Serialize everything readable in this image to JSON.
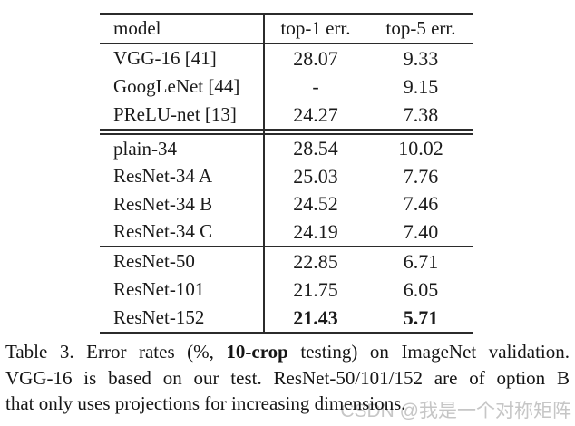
{
  "table": {
    "header": {
      "model": "model",
      "top1": "top-1 err.",
      "top5": "top-5 err."
    },
    "groups": [
      {
        "rows": [
          {
            "model": "VGG-16 [41]",
            "top1": "28.07",
            "top5": "9.33"
          },
          {
            "model": "GoogLeNet [44]",
            "top1": "-",
            "top5": "9.15"
          },
          {
            "model": "PReLU-net [13]",
            "top1": "24.27",
            "top5": "7.38"
          }
        ]
      },
      {
        "rows": [
          {
            "model": "plain-34",
            "top1": "28.54",
            "top5": "10.02"
          },
          {
            "model": "ResNet-34 A",
            "top1": "25.03",
            "top5": "7.76"
          },
          {
            "model": "ResNet-34 B",
            "top1": "24.52",
            "top5": "7.46"
          },
          {
            "model": "ResNet-34 C",
            "top1": "24.19",
            "top5": "7.40"
          }
        ]
      },
      {
        "rows": [
          {
            "model": "ResNet-50",
            "top1": "22.85",
            "top5": "6.71"
          },
          {
            "model": "ResNet-101",
            "top1": "21.75",
            "top5": "6.05"
          },
          {
            "model": "ResNet-152",
            "top1": "21.43",
            "top5": "5.71"
          }
        ]
      }
    ]
  },
  "caption": {
    "line1": {
      "pre": "Table 3. Error rates (%, ",
      "bold": "10-crop",
      "post": " testing) on ImageNet validation."
    },
    "line2": "VGG-16 is based on our test. ResNet-50/101/152 are of option B",
    "line3": "that only uses projections for increasing dimensions."
  },
  "watermark": {
    "text": "CSDN @我是一个对称矩阵"
  },
  "colors": {
    "background": "#ffffff",
    "text": "#1a1a1a",
    "rule": "#2b2b2b",
    "watermark": "#c6c6c6"
  }
}
